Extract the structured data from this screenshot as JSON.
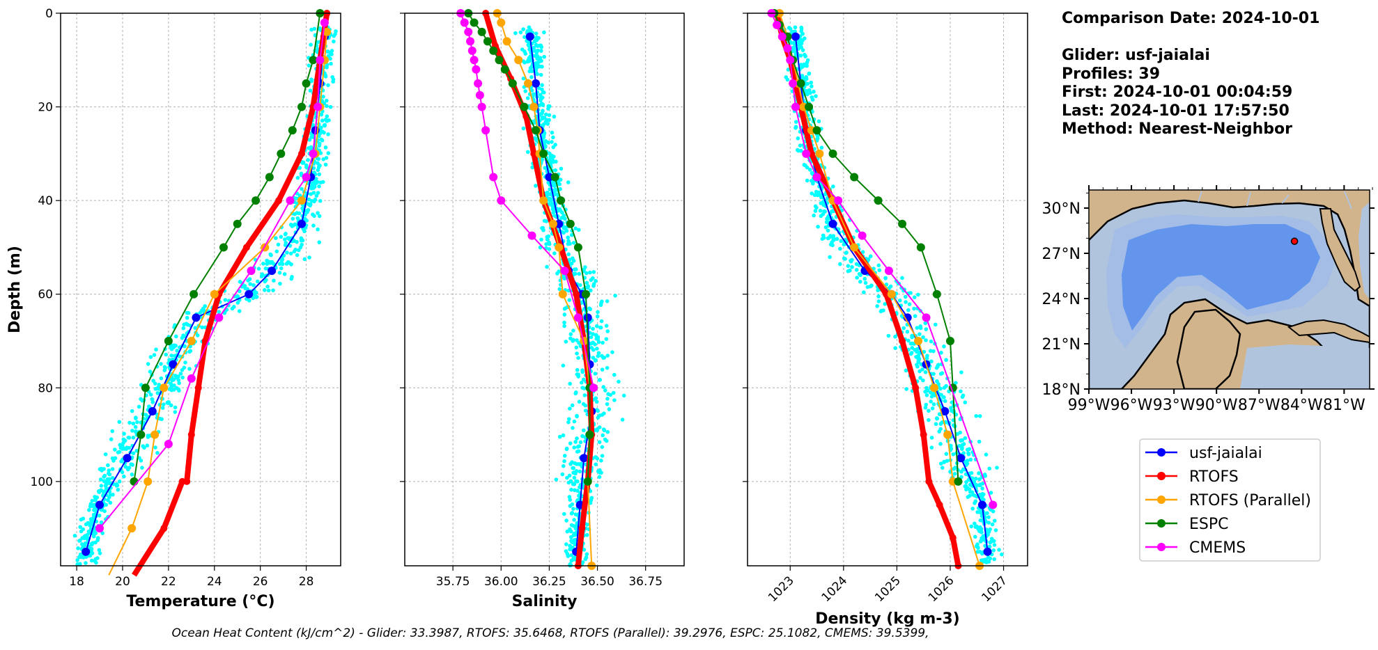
{
  "info": {
    "comparison_date": "Comparison Date: 2024-10-01",
    "glider": "Glider: usf-jaialai",
    "profiles": "Profiles: 39",
    "first": "First: 2024-10-01 00:04:59",
    "last": "Last: 2024-10-01 17:57:50",
    "method": "Method: Nearest-Neighbor"
  },
  "footer": "Ocean Heat Content (kJ/cm^2) - Glider: 33.3987,  RTOFS: 35.6468,  RTOFS (Parallel): 39.2976,  ESPC: 25.1082,  CMEMS: 39.5399,",
  "colors": {
    "usf-jaialai": "#0000ff",
    "RTOFS": "#ff0000",
    "RTOFS (Parallel)": "#ffa500",
    "ESPC": "#008000",
    "CMEMS": "#ff00ff",
    "scatter": "#00ffff",
    "land": "#d2b48c",
    "shelf": "#b0c4de",
    "slope": "#a4bde6",
    "deep": "#6495ed",
    "marker": "#ff0000"
  },
  "chart_data": [
    {
      "type": "line",
      "name": "temperature",
      "xlabel": "Temperature (°C)",
      "ylabel": "Depth (m)",
      "xlim": [
        17.3,
        29.5
      ],
      "ylim": [
        118,
        0
      ],
      "xticks": [
        18,
        20,
        22,
        24,
        26,
        28
      ],
      "yticks": [
        0,
        20,
        40,
        60,
        80,
        100
      ],
      "grid": true,
      "series": [
        {
          "name": "usf-jaialai",
          "x": [
            28.8,
            28.6,
            28.4,
            28.2,
            27.8,
            26.5,
            25.5,
            23.2,
            22.2,
            21.3,
            20.2,
            19.0,
            18.4
          ],
          "y": [
            5,
            15,
            25,
            35,
            45,
            55,
            60,
            65,
            75,
            85,
            95,
            105,
            115
          ]
        },
        {
          "name": "RTOFS",
          "x": [
            28.9,
            28.6,
            28.3,
            27.8,
            26.8,
            25.4,
            24.2,
            23.6,
            23.3,
            23.0,
            22.8,
            22.6,
            21.8,
            20.5
          ],
          "y": [
            0,
            10,
            20,
            30,
            40,
            50,
            60,
            70,
            80,
            90,
            100,
            100,
            110,
            120
          ]
        },
        {
          "name": "RTOFS (Parallel)",
          "x": [
            28.9,
            28.8,
            28.6,
            28.4,
            27.8,
            26.2,
            24.0,
            23.0,
            21.8,
            21.4,
            21.1,
            20.4,
            19.4
          ],
          "y": [
            4,
            10,
            20,
            30,
            40,
            50,
            60,
            70,
            80,
            90,
            100,
            110,
            120
          ]
        },
        {
          "name": "ESPC",
          "x": [
            28.6,
            28.3,
            28.0,
            27.8,
            27.4,
            26.9,
            26.4,
            25.8,
            25.0,
            24.4,
            23.1,
            22.0,
            21.0,
            20.8,
            20.5
          ],
          "y": [
            0,
            10,
            15,
            20,
            25,
            30,
            35,
            40,
            45,
            50,
            60,
            70,
            80,
            90,
            100
          ]
        },
        {
          "name": "CMEMS",
          "x": [
            28.8,
            28.6,
            28.5,
            28.3,
            28.0,
            27.3,
            25.6,
            24.2,
            23.0,
            22.0,
            19.0
          ],
          "y": [
            2,
            10,
            20,
            30,
            35,
            40,
            55,
            65,
            78,
            92,
            110
          ]
        }
      ]
    },
    {
      "type": "line",
      "name": "salinity",
      "xlabel": "Salinity",
      "ylabel": "",
      "xlim": [
        35.5,
        36.95
      ],
      "ylim": [
        118,
        0
      ],
      "xticks": [
        35.75,
        36.0,
        36.25,
        36.5,
        36.75
      ],
      "xticklabels": [
        "35.75",
        "36.00",
        "36.25",
        "36.50",
        "36.75"
      ],
      "grid": true,
      "series": [
        {
          "name": "usf-jaialai",
          "x": [
            36.15,
            36.18,
            36.2,
            36.25,
            36.3,
            36.35,
            36.42,
            36.45,
            36.46,
            36.47,
            36.43,
            36.41,
            36.39
          ],
          "y": [
            5,
            15,
            25,
            35,
            45,
            55,
            60,
            65,
            75,
            85,
            95,
            105,
            115
          ]
        },
        {
          "name": "RTOFS",
          "x": [
            35.92,
            35.97,
            36.05,
            36.13,
            36.17,
            36.22,
            36.31,
            36.39,
            36.43,
            36.46,
            36.47,
            36.45,
            36.42,
            36.4
          ],
          "y": [
            0,
            7,
            14,
            22,
            30,
            40,
            50,
            60,
            70,
            80,
            90,
            100,
            110,
            118
          ]
        },
        {
          "name": "RTOFS (Parallel)",
          "x": [
            35.98,
            36.0,
            36.03,
            36.09,
            36.14,
            36.17,
            36.19,
            36.2,
            36.22,
            36.27,
            36.3,
            36.32,
            36.43,
            36.46,
            36.46,
            36.45,
            36.47
          ],
          "y": [
            0,
            2,
            6,
            10,
            15,
            20,
            25,
            30,
            40,
            45,
            50,
            60,
            70,
            80,
            90,
            100,
            118
          ]
        },
        {
          "name": "ESPC",
          "x": [
            35.83,
            35.86,
            35.9,
            35.93,
            35.96,
            35.99,
            36.02,
            36.06,
            36.12,
            36.18,
            36.22,
            36.28,
            36.31,
            36.36,
            36.4,
            36.44,
            36.46,
            36.46,
            36.45
          ],
          "y": [
            0,
            2,
            4,
            6,
            8,
            10,
            12,
            15,
            20,
            25,
            30,
            35,
            40,
            45,
            50,
            60,
            80,
            90,
            100
          ]
        },
        {
          "name": "CMEMS",
          "x": [
            35.79,
            35.81,
            35.83,
            35.84,
            35.85,
            35.86,
            35.87,
            35.88,
            35.89,
            35.9,
            35.92,
            35.96,
            36.0,
            36.16,
            36.33,
            36.4,
            36.48
          ],
          "y": [
            0,
            2,
            4,
            6,
            8,
            10,
            12,
            15,
            17.5,
            20,
            25,
            35,
            40,
            47.5,
            55,
            65,
            80
          ]
        }
      ]
    },
    {
      "type": "line",
      "name": "density",
      "xlabel": "Density (kg m-3)",
      "ylabel": "",
      "xlim": [
        1022.2,
        1027.45
      ],
      "ylim": [
        118,
        0
      ],
      "xticks": [
        1023,
        1024,
        1025,
        1026,
        1027
      ],
      "grid": true,
      "series": [
        {
          "name": "usf-jaialai",
          "x": [
            1023.1,
            1023.2,
            1023.3,
            1023.5,
            1023.8,
            1024.4,
            1024.9,
            1025.2,
            1025.55,
            1025.9,
            1026.2,
            1026.6,
            1026.7
          ],
          "y": [
            5,
            15,
            25,
            35,
            45,
            55,
            60,
            65,
            75,
            85,
            95,
            105,
            115
          ]
        },
        {
          "name": "RTOFS",
          "x": [
            1022.75,
            1022.85,
            1023.0,
            1023.2,
            1023.4,
            1023.8,
            1024.2,
            1024.8,
            1025.1,
            1025.35,
            1025.5,
            1025.6,
            1025.8,
            1026.05,
            1026.15
          ],
          "y": [
            0,
            5,
            10,
            20,
            30,
            40,
            50,
            60,
            70,
            80,
            90,
            100,
            105,
            112,
            118
          ]
        },
        {
          "name": "RTOFS (Parallel)",
          "x": [
            1022.8,
            1022.95,
            1023.05,
            1023.15,
            1023.25,
            1023.4,
            1023.55,
            1023.8,
            1024.2,
            1024.9,
            1025.4,
            1025.7,
            1025.95,
            1026.05,
            1026.55
          ],
          "y": [
            0,
            5,
            10,
            15,
            20,
            25,
            30,
            40,
            50,
            60,
            70,
            80,
            90,
            100,
            118
          ]
        },
        {
          "name": "ESPC",
          "x": [
            1022.7,
            1022.8,
            1022.95,
            1023.05,
            1023.2,
            1023.35,
            1023.5,
            1023.8,
            1024.2,
            1024.65,
            1025.1,
            1025.45,
            1025.75,
            1026.0,
            1026.05,
            1026.15
          ],
          "y": [
            0,
            2.5,
            5,
            10,
            15,
            20,
            25,
            30,
            35,
            40,
            45,
            50,
            60,
            70,
            80,
            100
          ]
        },
        {
          "name": "CMEMS",
          "x": [
            1022.65,
            1022.75,
            1022.85,
            1022.95,
            1023.0,
            1023.05,
            1023.1,
            1023.3,
            1023.5,
            1023.9,
            1024.35,
            1024.85,
            1025.55,
            1026.8
          ],
          "y": [
            0,
            2.5,
            5,
            7.5,
            10,
            15,
            20,
            30,
            35,
            40,
            47.5,
            55,
            65,
            105
          ]
        }
      ]
    }
  ],
  "map": {
    "yticks": [
      "30°N",
      "27°N",
      "24°N",
      "21°N",
      "18°N"
    ],
    "xticks": [
      "99°W",
      "96°W",
      "93°W",
      "90°W",
      "87°W",
      "84°W",
      "81°W"
    ],
    "marker": {
      "lon": -84.5,
      "lat": 27.8
    }
  },
  "legend": [
    "usf-jaialai",
    "RTOFS",
    "RTOFS (Parallel)",
    "ESPC",
    "CMEMS"
  ]
}
